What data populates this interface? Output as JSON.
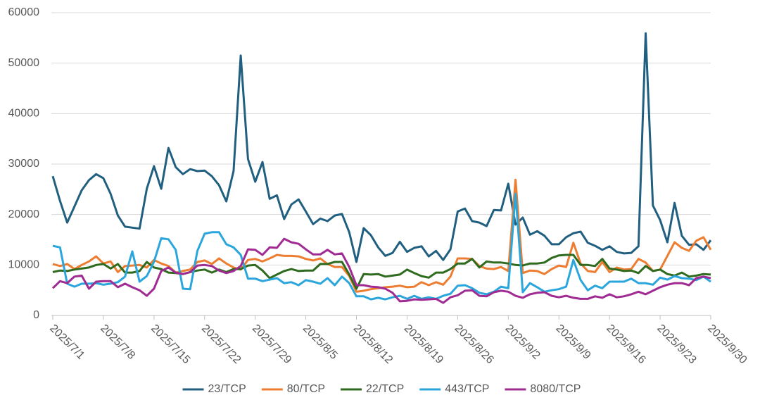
{
  "chart_data": {
    "type": "line",
    "categories": [
      "2025/7/1",
      null,
      null,
      null,
      null,
      null,
      null,
      "2025/7/8",
      null,
      null,
      null,
      null,
      null,
      null,
      "2025/7/15",
      null,
      null,
      null,
      null,
      null,
      null,
      "2025/7/22",
      null,
      null,
      null,
      null,
      null,
      null,
      "2025/7/29",
      null,
      null,
      null,
      null,
      null,
      null,
      "2025/8/5",
      null,
      null,
      null,
      null,
      null,
      null,
      "2025/8/12",
      null,
      null,
      null,
      null,
      null,
      null,
      "2025/8/19",
      null,
      null,
      null,
      null,
      null,
      null,
      "2025/8/26",
      null,
      null,
      null,
      null,
      null,
      null,
      "2025/9/2",
      null,
      null,
      null,
      null,
      null,
      null,
      "2025/9/9",
      null,
      null,
      null,
      null,
      null,
      null,
      "2025/9/16",
      null,
      null,
      null,
      null,
      null,
      null,
      "2025/9/23",
      null,
      null,
      null,
      null,
      null,
      null,
      "2025/9/30"
    ],
    "series": [
      {
        "name": "23/TCP",
        "color": "#215f80",
        "values": [
          27600,
          22700,
          18400,
          21600,
          24800,
          26800,
          28000,
          27200,
          24100,
          19800,
          17600,
          17400,
          17200,
          25100,
          29600,
          25100,
          33200,
          29400,
          28000,
          29000,
          28600,
          28700,
          27600,
          25800,
          22600,
          28600,
          51500,
          31000,
          26500,
          30400,
          23100,
          23800,
          19100,
          22000,
          23000,
          20600,
          18100,
          19200,
          18700,
          19800,
          20100,
          16500,
          10600,
          17300,
          15900,
          13500,
          11800,
          12400,
          14600,
          12600,
          13400,
          13700,
          11700,
          12800,
          11000,
          13100,
          20600,
          21200,
          18700,
          18400,
          17700,
          20900,
          20800,
          26100,
          18000,
          19400,
          16000,
          16700,
          15800,
          14100,
          14100,
          15500,
          16300,
          16600,
          14400,
          13800,
          13000,
          13700,
          12600,
          12300,
          12400,
          13700,
          55900,
          21800,
          18900,
          14500,
          22300,
          15800,
          14000,
          14100,
          13000,
          14900
        ]
      },
      {
        "name": "80/TCP",
        "color": "#ed7d31",
        "values": [
          10200,
          9800,
          10200,
          9200,
          10000,
          10700,
          11700,
          10300,
          10700,
          8600,
          9800,
          9900,
          10000,
          9500,
          11000,
          10300,
          9800,
          8500,
          8800,
          9100,
          10600,
          10900,
          10200,
          11300,
          10300,
          9500,
          9100,
          11000,
          11200,
          10700,
          11300,
          12000,
          11800,
          11800,
          11700,
          11200,
          10900,
          11300,
          10200,
          9600,
          9600,
          7800,
          4700,
          4900,
          5200,
          5400,
          5600,
          5700,
          5900,
          5600,
          5700,
          6600,
          6000,
          6600,
          6100,
          7700,
          11300,
          11300,
          11200,
          9800,
          9300,
          9200,
          9600,
          8800,
          26900,
          8400,
          8900,
          8800,
          8200,
          9200,
          9900,
          9600,
          14400,
          10300,
          8800,
          8600,
          10600,
          8600,
          9500,
          9100,
          9200,
          11200,
          10500,
          8800,
          9100,
          11800,
          14500,
          13400,
          12800,
          14800,
          15500,
          13000
        ]
      },
      {
        "name": "22/TCP",
        "color": "#2e6b1f",
        "values": [
          8600,
          8900,
          8800,
          9100,
          9300,
          9500,
          10000,
          10200,
          9300,
          10200,
          8500,
          8500,
          8800,
          10600,
          9500,
          9200,
          8500,
          8400,
          8200,
          8600,
          8900,
          9100,
          8500,
          9100,
          8600,
          9200,
          9200,
          9900,
          10000,
          8900,
          7400,
          8100,
          8800,
          9200,
          8800,
          8900,
          8900,
          10200,
          10200,
          10600,
          10600,
          8100,
          5300,
          8200,
          8100,
          8200,
          7700,
          7900,
          8100,
          9100,
          8400,
          7800,
          7500,
          8500,
          8500,
          9200,
          10300,
          10300,
          11200,
          9500,
          10700,
          10500,
          10500,
          10300,
          10000,
          9900,
          10300,
          10300,
          10500,
          11400,
          11900,
          12000,
          12000,
          10000,
          10000,
          9800,
          11200,
          9300,
          9100,
          8800,
          8900,
          8400,
          9800,
          8800,
          9100,
          8200,
          7900,
          8500,
          7700,
          7900,
          8200,
          8100
        ]
      },
      {
        "name": "443/TCP",
        "color": "#2ba6dc",
        "values": [
          13800,
          13500,
          6300,
          5700,
          6300,
          6300,
          6400,
          6100,
          6300,
          6600,
          7700,
          12700,
          6700,
          7800,
          10600,
          15300,
          15100,
          13000,
          5300,
          5200,
          12800,
          16200,
          16500,
          16500,
          14100,
          13500,
          12000,
          7300,
          7300,
          6800,
          7100,
          7400,
          6400,
          6600,
          6000,
          7000,
          6700,
          6300,
          7400,
          6000,
          7700,
          6400,
          3800,
          3800,
          3200,
          3500,
          3200,
          3600,
          3900,
          3300,
          3900,
          3300,
          3600,
          3300,
          3900,
          4300,
          5900,
          6000,
          5400,
          4500,
          4200,
          4700,
          5700,
          5400,
          24100,
          4600,
          6400,
          5600,
          4700,
          5000,
          5200,
          5700,
          11000,
          7000,
          5000,
          5900,
          5400,
          6700,
          6700,
          6700,
          7300,
          6400,
          6400,
          6100,
          7500,
          7100,
          7800,
          7400,
          7300,
          7000,
          7700,
          6700
        ]
      },
      {
        "name": "8080/TCP",
        "color": "#a02b93",
        "values": [
          5400,
          6800,
          6400,
          7700,
          7900,
          5300,
          6700,
          6800,
          6800,
          5600,
          6300,
          5600,
          5000,
          3900,
          5300,
          8800,
          9500,
          8500,
          8200,
          8600,
          9900,
          10000,
          9800,
          8900,
          8400,
          8800,
          9800,
          13100,
          13000,
          12000,
          13500,
          13400,
          15200,
          14500,
          14200,
          13100,
          12100,
          12100,
          13000,
          12100,
          12300,
          9600,
          6000,
          6000,
          5700,
          5600,
          5300,
          4500,
          2800,
          2900,
          3200,
          3100,
          3200,
          3300,
          2500,
          3600,
          4000,
          4900,
          5000,
          3900,
          3800,
          4600,
          4900,
          4700,
          3900,
          3500,
          4200,
          4500,
          4600,
          3900,
          3600,
          3900,
          3500,
          3300,
          3300,
          3800,
          3500,
          4200,
          3600,
          3800,
          4200,
          4700,
          4200,
          4900,
          5600,
          6100,
          6400,
          6400,
          6000,
          7400,
          7700,
          7400
        ]
      }
    ],
    "ylim": [
      0,
      60000
    ],
    "yticks": [
      0,
      10000,
      20000,
      30000,
      40000,
      50000,
      60000
    ],
    "grid": true
  }
}
